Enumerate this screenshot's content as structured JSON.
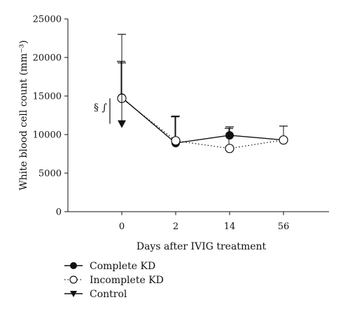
{
  "chart_data": {
    "type": "line",
    "xlabel": "Days after IVIG treatment",
    "ylabel": "White blood cell count (mm⁻³)",
    "categories": [
      "0",
      "2",
      "14",
      "56"
    ],
    "ylim": [
      0,
      25000
    ],
    "yticks": [
      "0",
      "5000",
      "10000",
      "15000",
      "20000",
      "25000"
    ],
    "annotation": "§ ∫",
    "series": [
      {
        "name": "Complete KD",
        "style": "solid",
        "marker": "filled-circle",
        "values": [
          14800,
          8900,
          9900,
          9300
        ],
        "error_upper": [
          23000,
          12400,
          11000,
          11100
        ]
      },
      {
        "name": "Incomplete KD",
        "style": "dotted",
        "marker": "open-circle",
        "values": [
          14700,
          9200,
          8200,
          9300
        ],
        "error_upper": [
          19500,
          12300,
          10800,
          null
        ]
      },
      {
        "name": "Control",
        "style": "none",
        "marker": "filled-triangle-down",
        "values": [
          11400,
          null,
          null,
          null
        ],
        "error_upper": [
          19300,
          null,
          null,
          null
        ]
      }
    ]
  }
}
